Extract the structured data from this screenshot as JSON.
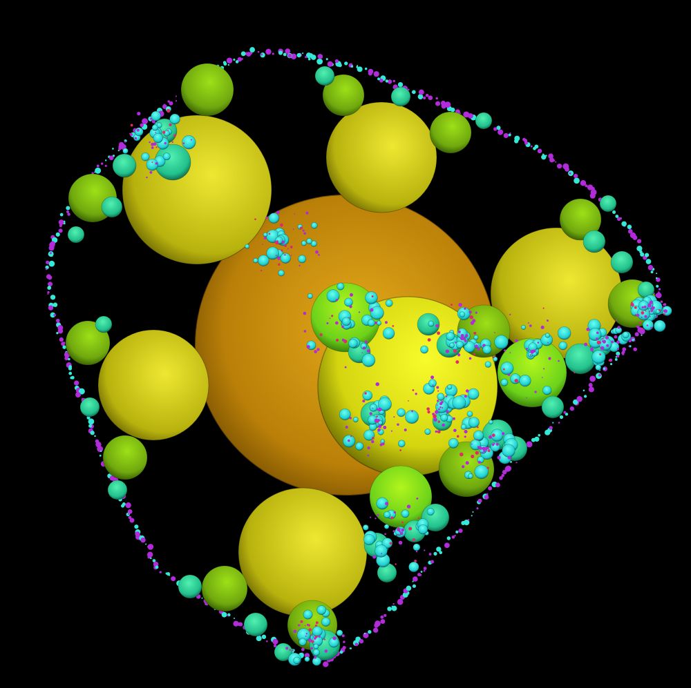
{
  "scene": {
    "background": "#000000",
    "palette": {
      "large_sphere": "#d8a012",
      "big_sphere": "#d6d016",
      "medium_sphere": "#7fc416",
      "small_sphere": "#2fdc9c",
      "tiny_sphere": "#36e8d8",
      "cusp_glow": "#b12cd8",
      "cusp_highlight": "#e02a6a"
    }
  }
}
